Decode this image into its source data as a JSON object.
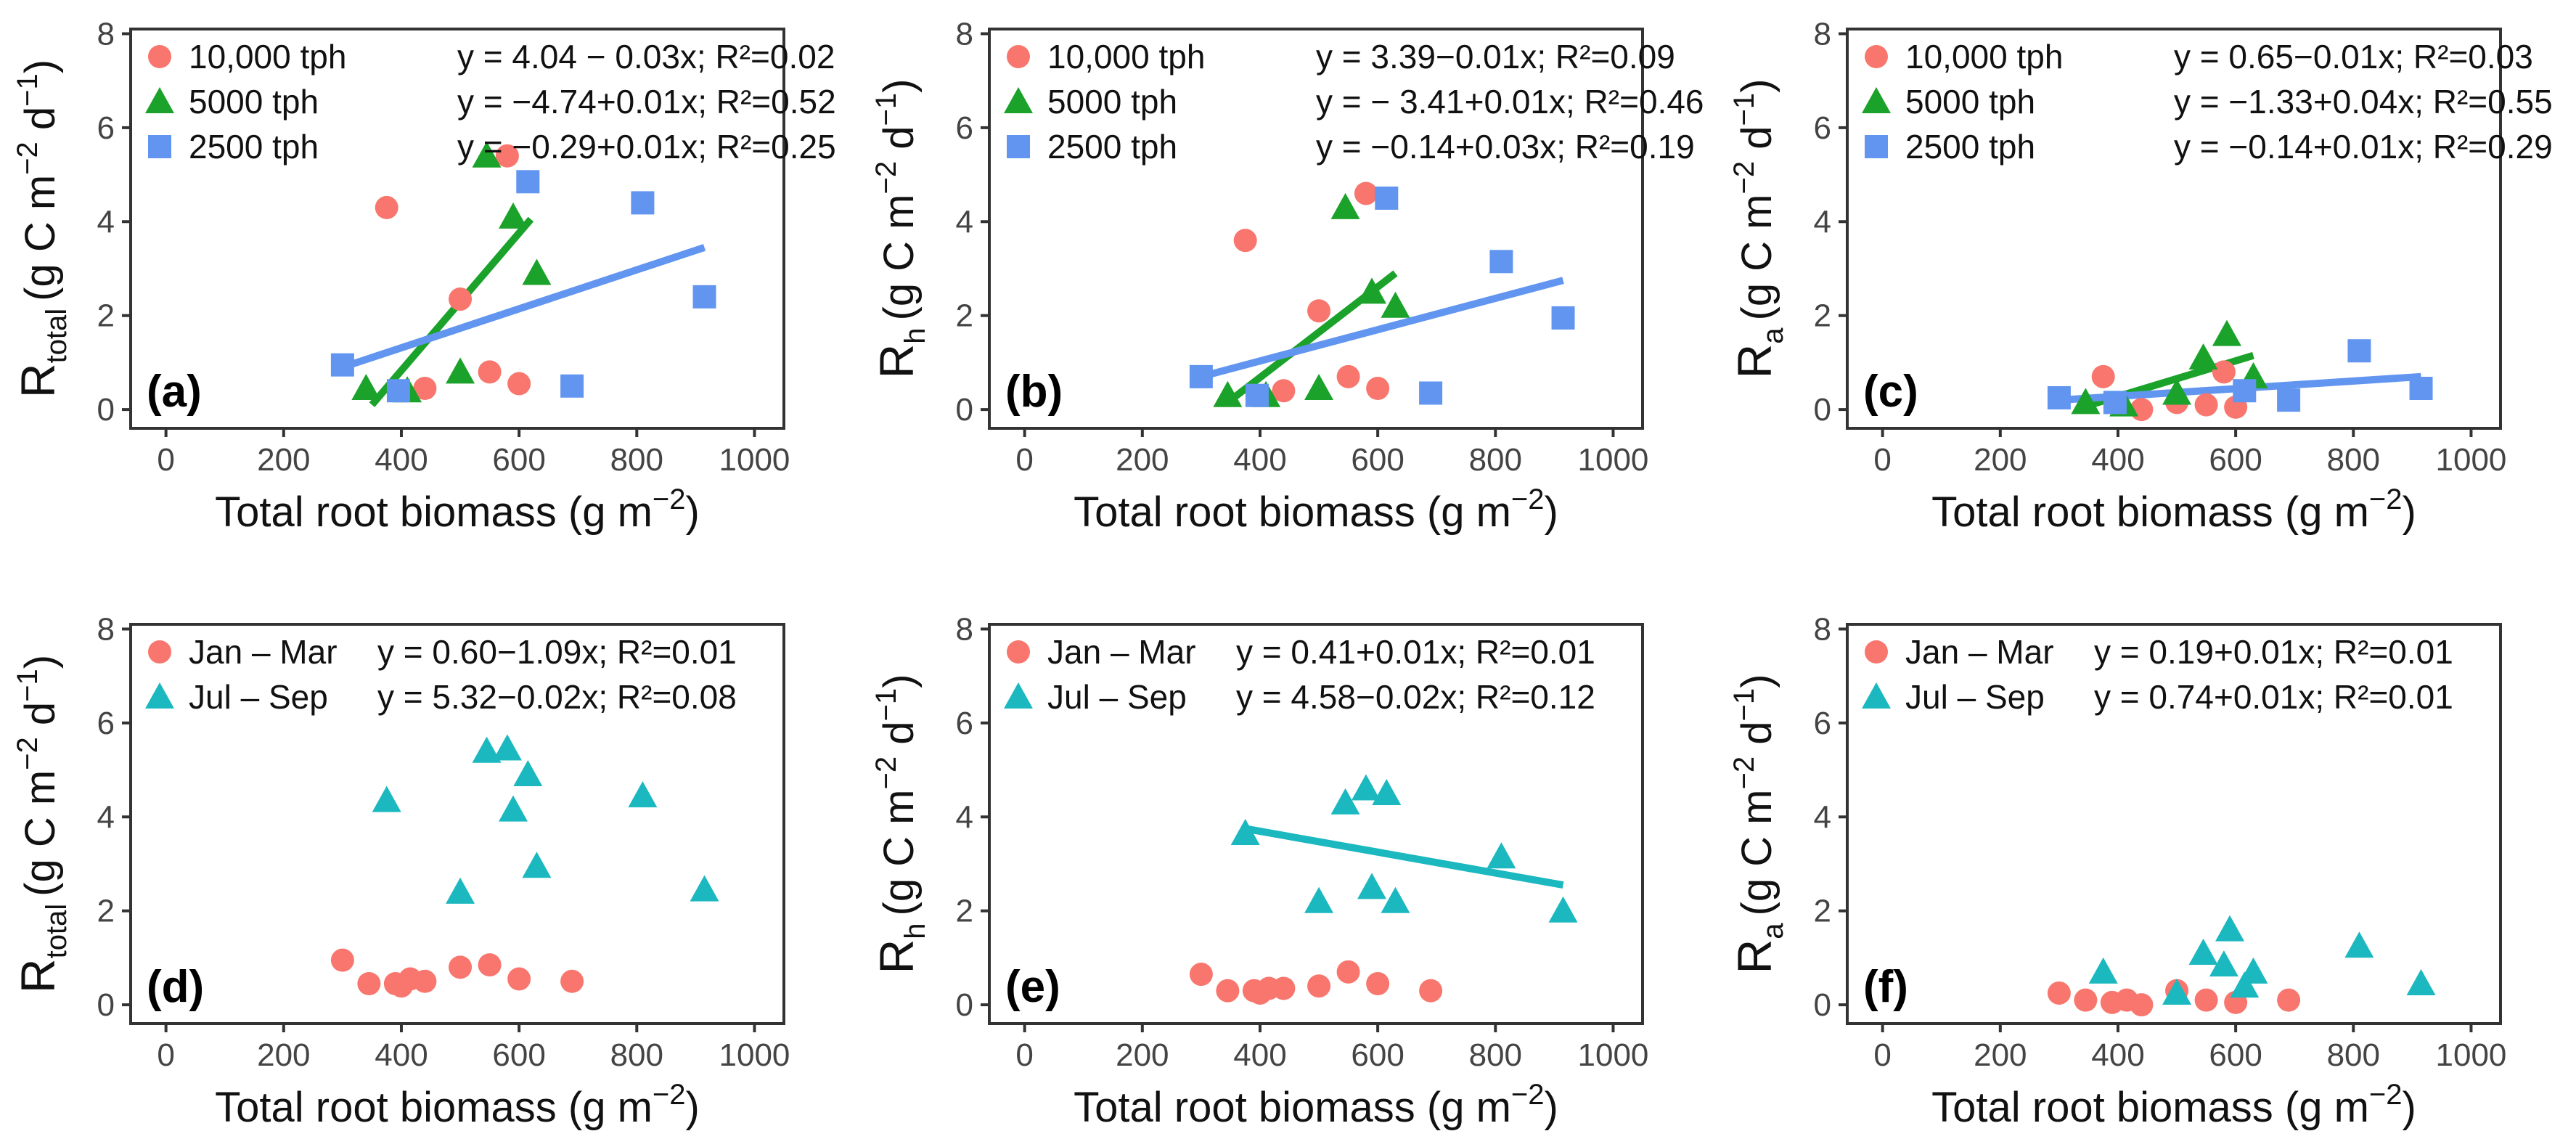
{
  "figure": {
    "colors": {
      "10000": "#F8766D",
      "5000": "#1BA22A",
      "2500": "#6195F0",
      "jan_mar": "#F8766D",
      "jul_sep": "#1CB8C0"
    }
  },
  "chart_data": [
    {
      "type": "scatter",
      "panel": "(a)",
      "ylabel_base": "R",
      "ylabel_sub": "total",
      "ylabel_unit": "(g C m",
      "ylabel_exp1": "−2",
      "ylabel_mid": " d",
      "ylabel_exp2": "−1",
      "ylabel_close": ")",
      "xlabel": "Total root biomass (g m",
      "xlabel_exp": "−2",
      "xlabel_close": ")",
      "xlim": [
        -60,
        1050
      ],
      "ylim": [
        -0.4,
        8.1
      ],
      "xticks": [
        "0",
        "200",
        "400",
        "600",
        "800",
        "1000"
      ],
      "yticks": [
        "0",
        "2",
        "4",
        "6",
        "8"
      ],
      "series": [
        {
          "name": "10,000 tph",
          "color": "#F8766D",
          "marker": "circle",
          "equation": "y = 4.04 − 0.03x; R²=0.02",
          "points": [
            [
              375,
              4.3
            ],
            [
              500,
              2.35
            ],
            [
              580,
              5.4
            ],
            [
              440,
              0.45
            ],
            [
              550,
              0.8
            ],
            [
              600,
              0.55
            ]
          ],
          "fit": null
        },
        {
          "name": "5000 tph",
          "color": "#1BA22A",
          "marker": "triangle",
          "equation": "y = −4.74+0.01x; R²=0.52",
          "points": [
            [
              340,
              0.45
            ],
            [
              410,
              0.4
            ],
            [
              500,
              0.8
            ],
            [
              545,
              5.4
            ],
            [
              590,
              4.1
            ],
            [
              630,
              2.9
            ]
          ],
          "fit": [
            [
              350,
              0.1
            ],
            [
              620,
              4.05
            ]
          ]
        },
        {
          "name": "2500 tph",
          "color": "#6195F0",
          "marker": "square",
          "equation": "y = −0.29+0.01x; R²=0.25",
          "points": [
            [
              300,
              0.95
            ],
            [
              395,
              0.4
            ],
            [
              615,
              4.85
            ],
            [
              690,
              0.5
            ],
            [
              810,
              4.4
            ],
            [
              915,
              2.4
            ]
          ],
          "fit": [
            [
              300,
              0.9
            ],
            [
              915,
              3.45
            ]
          ]
        }
      ]
    },
    {
      "type": "scatter",
      "panel": "(b)",
      "ylabel_base": "R",
      "ylabel_sub": "h",
      "ylabel_unit": "(g C m",
      "ylabel_exp1": "−2",
      "ylabel_mid": " d",
      "ylabel_exp2": "−1",
      "ylabel_close": ")",
      "xlabel": "Total root biomass (g m",
      "xlabel_exp": "−2",
      "xlabel_close": ")",
      "xlim": [
        -60,
        1050
      ],
      "ylim": [
        -0.4,
        8.1
      ],
      "xticks": [
        "0",
        "200",
        "400",
        "600",
        "800",
        "1000"
      ],
      "yticks": [
        "0",
        "2",
        "4",
        "6",
        "8"
      ],
      "series": [
        {
          "name": "10,000 tph",
          "color": "#F8766D",
          "marker": "circle",
          "equation": "y = 3.39−0.01x;   R²=0.09",
          "points": [
            [
              375,
              3.6
            ],
            [
              500,
              2.1
            ],
            [
              580,
              4.6
            ],
            [
              440,
              0.4
            ],
            [
              550,
              0.7
            ],
            [
              600,
              0.45
            ]
          ],
          "fit": null
        },
        {
          "name": "5000 tph",
          "color": "#1BA22A",
          "marker": "triangle",
          "equation": "y = − 3.41+0.01x; R²=0.46",
          "points": [
            [
              345,
              0.3
            ],
            [
              410,
              0.3
            ],
            [
              500,
              0.45
            ],
            [
              545,
              4.3
            ],
            [
              590,
              2.5
            ],
            [
              630,
              2.2
            ]
          ],
          "fit": [
            [
              350,
              0.2
            ],
            [
              630,
              2.9
            ]
          ]
        },
        {
          "name": "2500 tph",
          "color": "#6195F0",
          "marker": "square",
          "equation": "y = −0.14+0.03x; R²=0.19",
          "points": [
            [
              300,
              0.7
            ],
            [
              395,
              0.3
            ],
            [
              615,
              4.5
            ],
            [
              690,
              0.35
            ],
            [
              810,
              3.15
            ],
            [
              915,
              1.95
            ]
          ],
          "fit": [
            [
              300,
              0.7
            ],
            [
              915,
              2.75
            ]
          ]
        }
      ]
    },
    {
      "type": "scatter",
      "panel": "(c)",
      "ylabel_base": "R",
      "ylabel_sub": "a",
      "ylabel_unit": "(g C m",
      "ylabel_exp1": "−2",
      "ylabel_mid": " d",
      "ylabel_exp2": "−1",
      "ylabel_close": ")",
      "xlabel": "Total root biomass (g m",
      "xlabel_exp": "−2",
      "xlabel_close": ")",
      "xlim": [
        -60,
        1050
      ],
      "ylim": [
        -0.4,
        8.1
      ],
      "xticks": [
        "0",
        "200",
        "400",
        "600",
        "800",
        "1000"
      ],
      "yticks": [
        "0",
        "2",
        "4",
        "6",
        "8"
      ],
      "series": [
        {
          "name": "10,000 tph",
          "color": "#F8766D",
          "marker": "circle",
          "equation": "y = 0.65−0.01x;    R²=0.03",
          "points": [
            [
              375,
              0.7
            ],
            [
              500,
              0.15
            ],
            [
              580,
              0.8
            ],
            [
              440,
              0.0
            ],
            [
              550,
              0.1
            ],
            [
              600,
              0.05
            ]
          ],
          "fit": null
        },
        {
          "name": "5000 tph",
          "color": "#1BA22A",
          "marker": "triangle",
          "equation": "y = −1.33+0.04x;  R²=0.55",
          "points": [
            [
              345,
              0.15
            ],
            [
              410,
              0.1
            ],
            [
              500,
              0.35
            ],
            [
              545,
              1.1
            ],
            [
              585,
              1.6
            ],
            [
              630,
              0.7
            ]
          ],
          "fit": [
            [
              340,
              0.05
            ],
            [
              630,
              1.15
            ]
          ]
        },
        {
          "name": "2500 tph",
          "color": "#6195F0",
          "marker": "square",
          "equation": "y = −0.14+0.01x;  R²=0.29",
          "points": [
            [
              300,
              0.25
            ],
            [
              395,
              0.15
            ],
            [
              615,
              0.4
            ],
            [
              690,
              0.2
            ],
            [
              810,
              1.25
            ],
            [
              915,
              0.45
            ]
          ],
          "fit": [
            [
              300,
              0.2
            ],
            [
              915,
              0.7
            ]
          ]
        }
      ]
    },
    {
      "type": "scatter",
      "panel": "(d)",
      "ylabel_base": "R",
      "ylabel_sub": "total",
      "ylabel_unit": "(g C m",
      "ylabel_exp1": "−2",
      "ylabel_mid": " d",
      "ylabel_exp2": "−1",
      "ylabel_close": ")",
      "xlabel": "Total root biomass (g m",
      "xlabel_exp": "−2",
      "xlabel_close": ")",
      "xlim": [
        -60,
        1050
      ],
      "ylim": [
        -0.4,
        8.1
      ],
      "xticks": [
        "0",
        "200",
        "400",
        "600",
        "800",
        "1000"
      ],
      "yticks": [
        "0",
        "2",
        "4",
        "6",
        "8"
      ],
      "series": [
        {
          "name": "Jan – Mar",
          "color": "#F8766D",
          "marker": "circle",
          "equation": "y = 0.60−1.09x; R²=0.01",
          "points": [
            [
              300,
              0.95
            ],
            [
              345,
              0.45
            ],
            [
              390,
              0.45
            ],
            [
              400,
              0.4
            ],
            [
              415,
              0.55
            ],
            [
              440,
              0.5
            ],
            [
              500,
              0.8
            ],
            [
              550,
              0.85
            ],
            [
              600,
              0.55
            ],
            [
              690,
              0.5
            ]
          ],
          "fit": null
        },
        {
          "name": "Jul – Sep",
          "color": "#1CB8C0",
          "marker": "triangle",
          "equation": "y = 5.32−0.02x; R²=0.08",
          "points": [
            [
              375,
              4.35
            ],
            [
              500,
              2.4
            ],
            [
              545,
              5.4
            ],
            [
              580,
              5.45
            ],
            [
              590,
              4.15
            ],
            [
              615,
              4.9
            ],
            [
              630,
              2.95
            ],
            [
              810,
              4.45
            ],
            [
              915,
              2.45
            ]
          ],
          "fit": null
        }
      ]
    },
    {
      "type": "scatter",
      "panel": "(e)",
      "ylabel_base": "R",
      "ylabel_sub": "h",
      "ylabel_unit": "(g C m",
      "ylabel_exp1": "−2",
      "ylabel_mid": " d",
      "ylabel_exp2": "−1",
      "ylabel_close": ")",
      "xlabel": "Total root biomass (g m",
      "xlabel_exp": "−2",
      "xlabel_close": ")",
      "xlim": [
        -60,
        1050
      ],
      "ylim": [
        -0.4,
        8.1
      ],
      "xticks": [
        "0",
        "200",
        "400",
        "600",
        "800",
        "1000"
      ],
      "yticks": [
        "0",
        "2",
        "4",
        "6",
        "8"
      ],
      "series": [
        {
          "name": "Jan – Mar",
          "color": "#F8766D",
          "marker": "circle",
          "equation": "y = 0.41+0.01x; R²=0.01",
          "points": [
            [
              300,
              0.65
            ],
            [
              345,
              0.3
            ],
            [
              390,
              0.3
            ],
            [
              400,
              0.25
            ],
            [
              415,
              0.35
            ],
            [
              440,
              0.35
            ],
            [
              500,
              0.4
            ],
            [
              550,
              0.7
            ],
            [
              600,
              0.45
            ],
            [
              690,
              0.3
            ]
          ],
          "fit": null
        },
        {
          "name": "Jul – Sep",
          "color": "#1CB8C0",
          "marker": "triangle",
          "equation": "y = 4.58−0.02x; R²=0.12",
          "points": [
            [
              375,
              3.65
            ],
            [
              500,
              2.2
            ],
            [
              545,
              4.3
            ],
            [
              580,
              4.6
            ],
            [
              590,
              2.5
            ],
            [
              615,
              4.5
            ],
            [
              630,
              2.2
            ],
            [
              810,
              3.15
            ],
            [
              915,
              2.0
            ]
          ],
          "fit": [
            [
              375,
              3.75
            ],
            [
              915,
              2.55
            ]
          ]
        }
      ]
    },
    {
      "type": "scatter",
      "panel": "(f)",
      "ylabel_base": "R",
      "ylabel_sub": "a",
      "ylabel_unit": "(g C m",
      "ylabel_exp1": "−2",
      "ylabel_mid": " d",
      "ylabel_exp2": "−1",
      "ylabel_close": ")",
      "xlabel": "Total root biomass (g m",
      "xlabel_exp": "−2",
      "xlabel_close": ")",
      "xlim": [
        -60,
        1050
      ],
      "ylim": [
        -0.4,
        8.1
      ],
      "xticks": [
        "0",
        "200",
        "400",
        "600",
        "800",
        "1000"
      ],
      "yticks": [
        "0",
        "2",
        "4",
        "6",
        "8"
      ],
      "series": [
        {
          "name": "Jan – Mar",
          "color": "#F8766D",
          "marker": "circle",
          "equation": "y = 0.19+0.01x; R²=0.01",
          "points": [
            [
              300,
              0.25
            ],
            [
              345,
              0.1
            ],
            [
              390,
              0.05
            ],
            [
              415,
              0.1
            ],
            [
              440,
              0.0
            ],
            [
              500,
              0.3
            ],
            [
              550,
              0.1
            ],
            [
              600,
              0.05
            ],
            [
              690,
              0.1
            ]
          ],
          "fit": null
        },
        {
          "name": "Jul – Sep",
          "color": "#1CB8C0",
          "marker": "triangle",
          "equation": "y = 0.74+0.01x; R²=0.01",
          "points": [
            [
              375,
              0.7
            ],
            [
              500,
              0.25
            ],
            [
              545,
              1.1
            ],
            [
              580,
              0.85
            ],
            [
              590,
              1.6
            ],
            [
              615,
              0.4
            ],
            [
              630,
              0.7
            ],
            [
              810,
              1.25
            ],
            [
              915,
              0.45
            ]
          ],
          "fit": null
        }
      ]
    }
  ]
}
